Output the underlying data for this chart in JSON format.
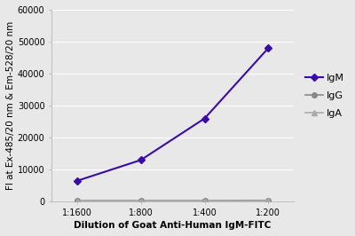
{
  "x_labels": [
    "1:1600",
    "1:800",
    "1:400",
    "1:200"
  ],
  "x_values": [
    0,
    1,
    2,
    3
  ],
  "IgM_values": [
    6500,
    13000,
    26000,
    48000
  ],
  "IgG_values": [
    300,
    300,
    300,
    400
  ],
  "IgA_values": [
    200,
    200,
    200,
    300
  ],
  "IgM_color": "#3a0ca3",
  "IgG_color": "#888888",
  "IgA_color": "#aaaaaa",
  "ylabel": "FI at Ex-485/20 nm & Em-528/20 nm",
  "xlabel": "Dilution of Goat Anti-Human IgM-FITC",
  "ylim": [
    0,
    60000
  ],
  "yticks": [
    0,
    10000,
    20000,
    30000,
    40000,
    50000,
    60000
  ],
  "axis_label_fontsize": 7.5,
  "tick_fontsize": 7,
  "legend_fontsize": 8,
  "background_color": "#e8e8e8",
  "plot_bg_color": "#e8e8e8",
  "grid_color": "#ffffff"
}
